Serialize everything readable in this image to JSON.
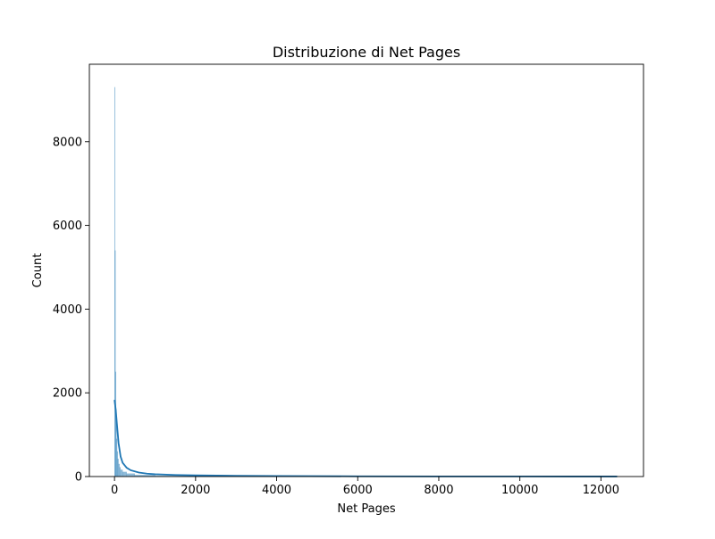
{
  "chart_data": {
    "type": "histogram",
    "title": "Distribuzione di Net Pages",
    "xlabel": "Net Pages",
    "ylabel": "Count",
    "xlim": [
      -620,
      13050
    ],
    "ylim": [
      0,
      9850
    ],
    "xticks": [
      0,
      2000,
      4000,
      6000,
      8000,
      10000,
      12000
    ],
    "yticks": [
      0,
      2000,
      4000,
      6000,
      8000
    ],
    "grid": false,
    "bar_color": "#1f77b4",
    "bar_fill_opacity": 0.5,
    "kde_color": "#1f77b4",
    "bins": [
      {
        "x0": 0,
        "x1": 12,
        "count": 9300
      },
      {
        "x0": 12,
        "x1": 24,
        "count": 5400
      },
      {
        "x0": 24,
        "x1": 36,
        "count": 2500
      },
      {
        "x0": 36,
        "x1": 50,
        "count": 1600
      },
      {
        "x0": 50,
        "x1": 65,
        "count": 900
      },
      {
        "x0": 65,
        "x1": 80,
        "count": 600
      },
      {
        "x0": 80,
        "x1": 100,
        "count": 420
      },
      {
        "x0": 100,
        "x1": 125,
        "count": 300
      },
      {
        "x0": 125,
        "x1": 150,
        "count": 220
      },
      {
        "x0": 150,
        "x1": 200,
        "count": 160
      },
      {
        "x0": 200,
        "x1": 300,
        "count": 110
      },
      {
        "x0": 300,
        "x1": 500,
        "count": 70
      },
      {
        "x0": 500,
        "x1": 1000,
        "count": 35
      },
      {
        "x0": 1000,
        "x1": 2000,
        "count": 15
      },
      {
        "x0": 2000,
        "x1": 4000,
        "count": 8
      },
      {
        "x0": 4000,
        "x1": 8000,
        "count": 4
      },
      {
        "x0": 8000,
        "x1": 12450,
        "count": 2
      }
    ],
    "kde": {
      "x": [
        0,
        30,
        60,
        100,
        150,
        200,
        300,
        400,
        600,
        800,
        1000,
        1500,
        2000,
        3000,
        4000,
        6000,
        8000,
        10000,
        12400
      ],
      "y": [
        1830,
        1600,
        1250,
        800,
        480,
        330,
        210,
        150,
        95,
        70,
        55,
        38,
        28,
        18,
        12,
        6,
        3,
        2,
        1
      ]
    }
  }
}
